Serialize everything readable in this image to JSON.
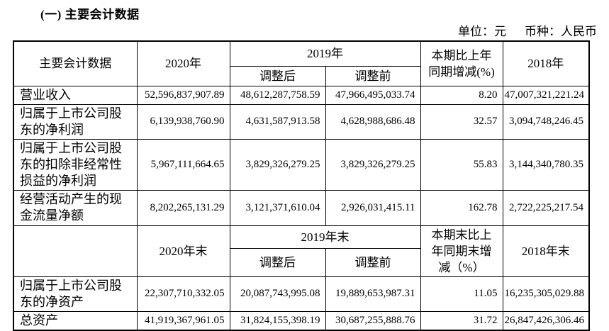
{
  "title": "(一) 主要会计数据",
  "unit": {
    "unit_label": "单位：元",
    "currency_label": "币种：人民币"
  },
  "table": {
    "section1": {
      "header": {
        "main": "主要会计数据",
        "y2020": "2020年",
        "y2019": "2019年",
        "adjusted": "调整后",
        "original": "调整前",
        "change": "本期比上年同期增减(%)",
        "y2018": "2018年"
      },
      "rows": [
        {
          "label": "营业收入",
          "y2020": "52,596,837,907.89",
          "y2019_adj": "48,612,287,758.59",
          "y2019_orig": "47,966,495,033.74",
          "change": "8.20",
          "y2018": "47,007,321,221.24"
        },
        {
          "label": "归属于上市公司股东的净利润",
          "y2020": "6,139,938,760.90",
          "y2019_adj": "4,631,587,913.58",
          "y2019_orig": "4,628,988,686.48",
          "change": "32.57",
          "y2018": "3,094,748,246.45"
        },
        {
          "label": "归属于上市公司股东的扣除非经常性损益的净利润",
          "y2020": "5,967,111,664.65",
          "y2019_adj": "3,829,326,279.25",
          "y2019_orig": "3,829,326,279.25",
          "change": "55.83",
          "y2018": "3,144,340,780.35"
        },
        {
          "label": "经营活动产生的现金流量净额",
          "y2020": "8,202,265,131.29",
          "y2019_adj": "3,121,371,610.04",
          "y2019_orig": "2,926,031,415.11",
          "change": "162.78",
          "y2018": "2,722,225,217.54"
        }
      ]
    },
    "section2": {
      "header": {
        "main": "",
        "y2020": "2020年末",
        "y2019": "2019年末",
        "adjusted": "调整后",
        "original": "调整前",
        "change": "本期末比上年同期末增减（%）",
        "y2018": "2018年末"
      },
      "rows": [
        {
          "label": "归属于上市公司股东的净资产",
          "y2020": "22,307,710,332.05",
          "y2019_adj": "20,087,743,995.08",
          "y2019_orig": "19,889,653,987.31",
          "change": "11.05",
          "y2018": "16,235,305,029.88"
        },
        {
          "label": "总资产",
          "y2020": "41,919,367,961.05",
          "y2019_adj": "31,824,155,398.19",
          "y2019_orig": "30,687,255,888.76",
          "change": "31.72",
          "y2018": "26,847,426,306.46"
        }
      ]
    }
  }
}
